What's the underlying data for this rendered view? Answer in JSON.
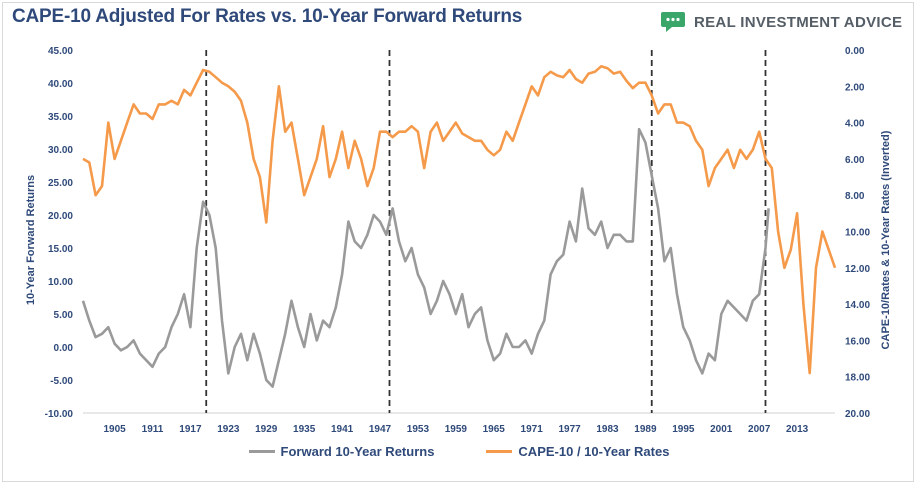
{
  "title": "CAPE-10 Adjusted For Rates vs. 10-Year Forward Returns",
  "brand": {
    "name": "REAL INVESTMENT ADVICE",
    "logo_icon": "chart-bubble-icon",
    "color": "#3aa66a"
  },
  "chart_data": {
    "type": "line",
    "xlabel": "",
    "ylabel_left": "10-Year Forward Returns",
    "ylabel_right": "CAPE-10/Rates & 10-Year Rates (Inverted)",
    "x_range": [
      1900,
      2019
    ],
    "x_ticks": [
      "1905",
      "1911",
      "1917",
      "1923",
      "1929",
      "1935",
      "1941",
      "1947",
      "1953",
      "1959",
      "1965",
      "1971",
      "1977",
      "1983",
      "1989",
      "1995",
      "2001",
      "2007",
      "2013"
    ],
    "y_left_range": [
      -10,
      45
    ],
    "y_left_ticks": [
      "45.00",
      "40.00",
      "35.00",
      "30.00",
      "25.00",
      "20.00",
      "15.00",
      "10.00",
      "5.00",
      "0.00",
      "-5.00",
      "-10.00"
    ],
    "y_right_range_inverted": [
      0,
      20
    ],
    "y_right_ticks": [
      "0.00",
      "2.00",
      "4.00",
      "6.00",
      "8.00",
      "10.00",
      "12.00",
      "14.00",
      "16.00",
      "18.00",
      "20.00"
    ],
    "grid": false,
    "legend_position": "bottom",
    "vlines_dashed": [
      1919.5,
      1948.5,
      1990.0,
      2008.0
    ],
    "series": [
      {
        "name": "Forward 10-Year Returns",
        "axis": "left",
        "color": "#9a9a9a",
        "points": [
          [
            1900,
            7
          ],
          [
            1901,
            4
          ],
          [
            1902,
            1.5
          ],
          [
            1903,
            2
          ],
          [
            1904,
            3
          ],
          [
            1905,
            0.5
          ],
          [
            1906,
            -0.5
          ],
          [
            1907,
            0
          ],
          [
            1908,
            1
          ],
          [
            1909,
            -1
          ],
          [
            1910,
            -2
          ],
          [
            1911,
            -3
          ],
          [
            1912,
            -1
          ],
          [
            1913,
            0
          ],
          [
            1914,
            3
          ],
          [
            1915,
            5
          ],
          [
            1916,
            8
          ],
          [
            1917,
            3
          ],
          [
            1918,
            15
          ],
          [
            1919,
            22
          ],
          [
            1920,
            20
          ],
          [
            1921,
            15
          ],
          [
            1922,
            4
          ],
          [
            1923,
            -4
          ],
          [
            1924,
            0
          ],
          [
            1925,
            2
          ],
          [
            1926,
            -2
          ],
          [
            1927,
            2
          ],
          [
            1928,
            -1
          ],
          [
            1929,
            -5
          ],
          [
            1930,
            -6
          ],
          [
            1931,
            -2
          ],
          [
            1932,
            2
          ],
          [
            1933,
            7
          ],
          [
            1934,
            3
          ],
          [
            1935,
            0
          ],
          [
            1936,
            5
          ],
          [
            1937,
            1
          ],
          [
            1938,
            4
          ],
          [
            1939,
            3
          ],
          [
            1940,
            6
          ],
          [
            1941,
            11
          ],
          [
            1942,
            19
          ],
          [
            1943,
            16
          ],
          [
            1944,
            15
          ],
          [
            1945,
            17
          ],
          [
            1946,
            20
          ],
          [
            1947,
            19
          ],
          [
            1948,
            17
          ],
          [
            1949,
            21
          ],
          [
            1950,
            16
          ],
          [
            1951,
            13
          ],
          [
            1952,
            15
          ],
          [
            1953,
            11
          ],
          [
            1954,
            9
          ],
          [
            1955,
            5
          ],
          [
            1956,
            7
          ],
          [
            1957,
            10
          ],
          [
            1958,
            8
          ],
          [
            1959,
            5
          ],
          [
            1960,
            8
          ],
          [
            1961,
            3
          ],
          [
            1962,
            5
          ],
          [
            1963,
            6
          ],
          [
            1964,
            1
          ],
          [
            1965,
            -2
          ],
          [
            1966,
            -1
          ],
          [
            1967,
            2
          ],
          [
            1968,
            0
          ],
          [
            1969,
            0
          ],
          [
            1970,
            1
          ],
          [
            1971,
            -1
          ],
          [
            1972,
            2
          ],
          [
            1973,
            4
          ],
          [
            1974,
            11
          ],
          [
            1975,
            13
          ],
          [
            1976,
            14
          ],
          [
            1977,
            19
          ],
          [
            1978,
            16
          ],
          [
            1979,
            24
          ],
          [
            1980,
            18
          ],
          [
            1981,
            17
          ],
          [
            1982,
            19
          ],
          [
            1983,
            15
          ],
          [
            1984,
            17
          ],
          [
            1985,
            17
          ],
          [
            1986,
            16
          ],
          [
            1987,
            16
          ],
          [
            1988,
            33
          ],
          [
            1989,
            31
          ],
          [
            1990,
            26
          ],
          [
            1991,
            21
          ],
          [
            1992,
            13
          ],
          [
            1993,
            15
          ],
          [
            1994,
            8
          ],
          [
            1995,
            3
          ],
          [
            1996,
            1
          ],
          [
            1997,
            -2
          ],
          [
            1998,
            -4
          ],
          [
            1999,
            -1
          ],
          [
            2000,
            -2
          ],
          [
            2001,
            5
          ],
          [
            2002,
            7
          ],
          [
            2003,
            6
          ],
          [
            2004,
            5
          ],
          [
            2005,
            4
          ],
          [
            2006,
            7
          ],
          [
            2007,
            8
          ],
          [
            2008,
            15
          ],
          [
            2008.5,
            21
          ]
        ]
      },
      {
        "name": "CAPE-10 / 10-Year Rates",
        "axis": "right",
        "color": "#f59a4a",
        "points": [
          [
            1900,
            6
          ],
          [
            1901,
            6.2
          ],
          [
            1902,
            8
          ],
          [
            1903,
            7.5
          ],
          [
            1904,
            4
          ],
          [
            1905,
            6
          ],
          [
            1906,
            5
          ],
          [
            1907,
            4
          ],
          [
            1908,
            3
          ],
          [
            1909,
            3.5
          ],
          [
            1910,
            3.5
          ],
          [
            1911,
            3.8
          ],
          [
            1912,
            3
          ],
          [
            1913,
            3
          ],
          [
            1914,
            2.8
          ],
          [
            1915,
            3
          ],
          [
            1916,
            2.2
          ],
          [
            1917,
            2.5
          ],
          [
            1918,
            1.8
          ],
          [
            1919,
            1.1
          ],
          [
            1920,
            1.2
          ],
          [
            1921,
            1.5
          ],
          [
            1922,
            1.8
          ],
          [
            1923,
            2
          ],
          [
            1924,
            2.3
          ],
          [
            1925,
            2.8
          ],
          [
            1926,
            4
          ],
          [
            1927,
            6
          ],
          [
            1928,
            7
          ],
          [
            1929,
            9.5
          ],
          [
            1930,
            5
          ],
          [
            1931,
            2
          ],
          [
            1932,
            4.5
          ],
          [
            1933,
            4
          ],
          [
            1934,
            6
          ],
          [
            1935,
            8
          ],
          [
            1936,
            7
          ],
          [
            1937,
            6
          ],
          [
            1938,
            4.2
          ],
          [
            1939,
            7
          ],
          [
            1940,
            6
          ],
          [
            1941,
            4.5
          ],
          [
            1942,
            6.5
          ],
          [
            1943,
            5
          ],
          [
            1944,
            6
          ],
          [
            1945,
            7.5
          ],
          [
            1946,
            6.5
          ],
          [
            1947,
            4.5
          ],
          [
            1948,
            4.5
          ],
          [
            1949,
            4.8
          ],
          [
            1950,
            4.5
          ],
          [
            1951,
            4.5
          ],
          [
            1952,
            4.2
          ],
          [
            1953,
            4.5
          ],
          [
            1954,
            6.5
          ],
          [
            1955,
            4.5
          ],
          [
            1956,
            4
          ],
          [
            1957,
            5
          ],
          [
            1958,
            4.5
          ],
          [
            1959,
            4
          ],
          [
            1960,
            4.6
          ],
          [
            1961,
            4.8
          ],
          [
            1962,
            5
          ],
          [
            1963,
            5
          ],
          [
            1964,
            5.5
          ],
          [
            1965,
            5.8
          ],
          [
            1966,
            5.5
          ],
          [
            1967,
            4.5
          ],
          [
            1968,
            5
          ],
          [
            1969,
            4
          ],
          [
            1970,
            3
          ],
          [
            1971,
            2
          ],
          [
            1972,
            2.5
          ],
          [
            1973,
            1.5
          ],
          [
            1974,
            1.2
          ],
          [
            1975,
            1.4
          ],
          [
            1976,
            1.5
          ],
          [
            1977,
            1.1
          ],
          [
            1978,
            1.6
          ],
          [
            1979,
            1.8
          ],
          [
            1980,
            1.3
          ],
          [
            1981,
            1.2
          ],
          [
            1982,
            0.9
          ],
          [
            1983,
            1
          ],
          [
            1984,
            1.3
          ],
          [
            1985,
            1.2
          ],
          [
            1986,
            1.7
          ],
          [
            1987,
            2.1
          ],
          [
            1988,
            1.8
          ],
          [
            1989,
            1.8
          ],
          [
            1990,
            2.5
          ],
          [
            1991,
            3.5
          ],
          [
            1992,
            3
          ],
          [
            1993,
            3
          ],
          [
            1994,
            4
          ],
          [
            1995,
            4
          ],
          [
            1996,
            4.2
          ],
          [
            1997,
            5
          ],
          [
            1998,
            5.5
          ],
          [
            1999,
            7.5
          ],
          [
            2000,
            6.5
          ],
          [
            2001,
            6
          ],
          [
            2002,
            5.5
          ],
          [
            2003,
            6.5
          ],
          [
            2004,
            5.5
          ],
          [
            2005,
            6
          ],
          [
            2006,
            5.5
          ],
          [
            2007,
            4.5
          ],
          [
            2008,
            6
          ],
          [
            2009,
            6.5
          ],
          [
            2010,
            10
          ],
          [
            2011,
            12
          ],
          [
            2012,
            11
          ],
          [
            2013,
            9
          ],
          [
            2014,
            14
          ],
          [
            2015,
            17.8
          ],
          [
            2016,
            12
          ],
          [
            2017,
            10
          ],
          [
            2018,
            11
          ],
          [
            2019,
            12
          ]
        ]
      }
    ]
  }
}
